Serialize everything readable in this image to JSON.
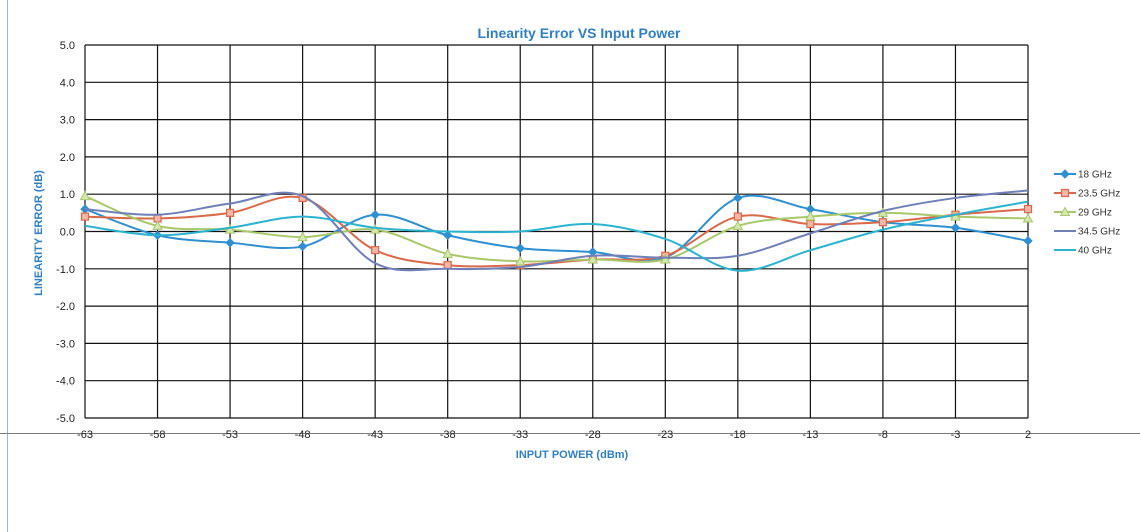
{
  "chart_data": {
    "type": "line",
    "title": "Linearity Error VS Input Power",
    "xlabel": "INPUT POWER (dBm)",
    "ylabel": "LINEARITY ERROR (dB)",
    "x": [
      -63,
      -58,
      -53,
      -48,
      -43,
      -38,
      -33,
      -28,
      -23,
      -18,
      -13,
      -8,
      -3,
      2
    ],
    "xticks": [
      "-63",
      "-58",
      "-53",
      "-48",
      "-43",
      "-38",
      "-33",
      "-28",
      "-23",
      "-18",
      "-13",
      "-8",
      "-3",
      "2"
    ],
    "ylim": [
      -5,
      5
    ],
    "yticks": [
      "5.0",
      "4.0",
      "3.0",
      "2.0",
      "1.0",
      "0.0",
      "-1.0",
      "-2.0",
      "-3.0",
      "-4.0",
      "-5.0"
    ],
    "grid": true,
    "legend_position": "right",
    "series": [
      {
        "name": "18 GHz",
        "color": "#2f8fd1",
        "marker": "diamond",
        "values": [
          0.6,
          -0.1,
          -0.3,
          -0.4,
          0.45,
          -0.1,
          -0.45,
          -0.55,
          -0.7,
          0.9,
          0.6,
          0.25,
          0.1,
          -0.25
        ]
      },
      {
        "name": "23.5 GHz",
        "color": "#d9694a",
        "marker": "square",
        "values": [
          0.4,
          0.35,
          0.5,
          0.9,
          -0.5,
          -0.9,
          -0.9,
          -0.75,
          -0.65,
          0.4,
          0.2,
          0.25,
          0.45,
          0.6
        ]
      },
      {
        "name": "29 GHz",
        "color": "#a8c86a",
        "marker": "triangle",
        "values": [
          0.95,
          0.15,
          0.05,
          -0.15,
          0.05,
          -0.6,
          -0.8,
          -0.75,
          -0.75,
          0.15,
          0.4,
          0.5,
          0.4,
          0.35
        ]
      },
      {
        "name": "34.5 GHz",
        "color": "#6f7fb8",
        "marker": "none",
        "values": [
          0.6,
          0.45,
          0.75,
          0.95,
          -0.85,
          -1.0,
          -0.95,
          -0.65,
          -0.7,
          -0.65,
          -0.05,
          0.55,
          0.9,
          1.1
        ]
      },
      {
        "name": "40 GHz",
        "color": "#2bb3cf",
        "marker": "none",
        "values": [
          0.15,
          -0.1,
          0.1,
          0.4,
          0.1,
          0.0,
          0.0,
          0.2,
          -0.2,
          -1.05,
          -0.5,
          0.05,
          0.45,
          0.8
        ]
      }
    ]
  }
}
